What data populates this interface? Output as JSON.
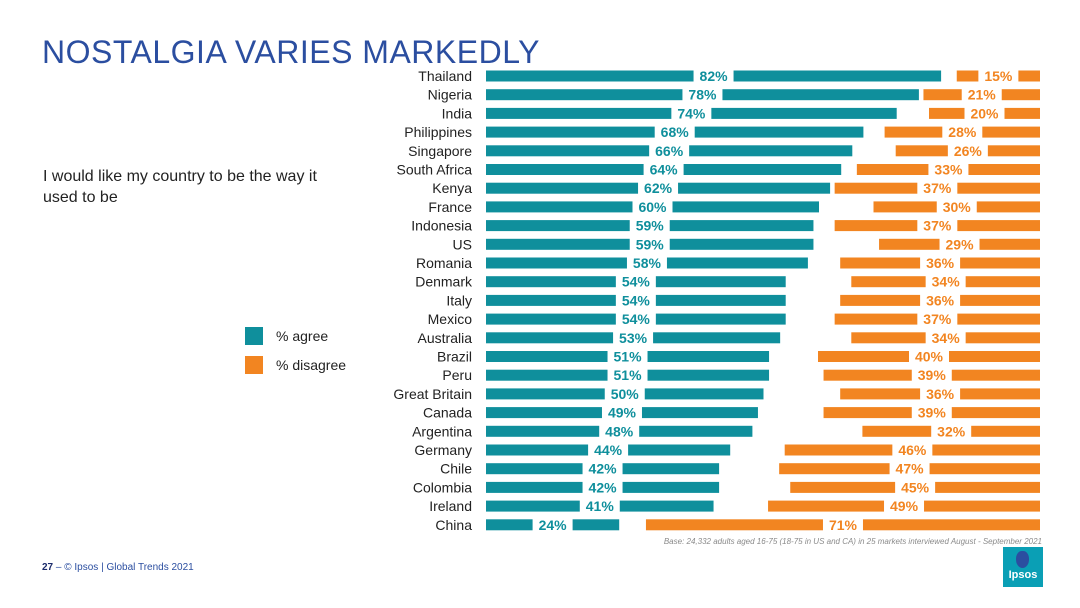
{
  "title": "NOSTALGIA VARIES MARKEDLY",
  "subtitle": "I would like my country to be the way it used to be",
  "colors": {
    "agree": "#0f8f9c",
    "disagree": "#f28521",
    "title": "#2b4ea0"
  },
  "base_note": "Base: 24,332 adults aged 16-75 (18-75 in US and CA) in 25 markets interviewed August - September 2021",
  "footer": {
    "page": "27",
    "sep": "–",
    "text": "© Ipsos | Global Trends 2021"
  },
  "logo": {
    "text": "Ipsos"
  },
  "chart_data": {
    "type": "bar",
    "orientation": "horizontal",
    "categories": [
      "Thailand",
      "Nigeria",
      "India",
      "Philippines",
      "Singapore",
      "South Africa",
      "Kenya",
      "France",
      "Indonesia",
      "US",
      "Romania",
      "Denmark",
      "Italy",
      "Mexico",
      "Australia",
      "Brazil",
      "Peru",
      "Great Britain",
      "Canada",
      "Argentina",
      "Germany",
      "Chile",
      "Colombia",
      "Ireland",
      "China"
    ],
    "series": [
      {
        "name": "% agree",
        "values": [
          82,
          78,
          74,
          68,
          66,
          64,
          62,
          60,
          59,
          59,
          58,
          54,
          54,
          54,
          53,
          51,
          51,
          50,
          49,
          48,
          44,
          42,
          42,
          41,
          24
        ]
      },
      {
        "name": "% disagree",
        "values": [
          15,
          21,
          20,
          28,
          26,
          33,
          37,
          30,
          37,
          29,
          36,
          34,
          36,
          37,
          34,
          40,
          39,
          36,
          39,
          32,
          46,
          47,
          45,
          49,
          71
        ]
      }
    ],
    "value_suffix": "%",
    "legend_position": "left"
  }
}
